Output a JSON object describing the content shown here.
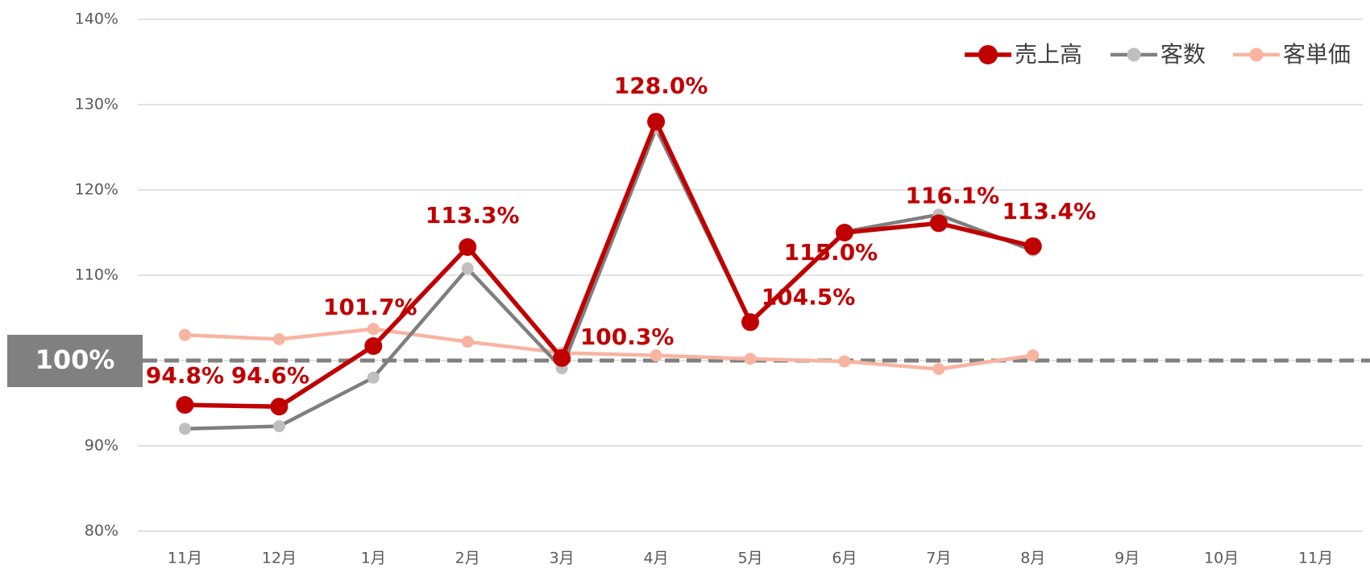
{
  "chart_data": {
    "type": "line",
    "categories": [
      "11月",
      "12月",
      "1月",
      "2月",
      "3月",
      "4月",
      "5月",
      "6月",
      "7月",
      "8月",
      "9月",
      "10月",
      "11月"
    ],
    "series": [
      {
        "name": "売上高",
        "color": "#c00000",
        "values": [
          94.8,
          94.6,
          101.7,
          113.3,
          100.3,
          128.0,
          104.5,
          115.0,
          116.1,
          113.4,
          null,
          null,
          null
        ],
        "value_labels": [
          "94.8%",
          "94.6%",
          "101.7%",
          "113.3%",
          "100.3%",
          "128.0%",
          "104.5%",
          "115.0%",
          "116.1%",
          "113.4%",
          null,
          null,
          null
        ]
      },
      {
        "name": "客数",
        "color": "#7f7f7f",
        "marker_color": "#bfbfbf",
        "values": [
          92.0,
          92.3,
          98.0,
          110.8,
          99.1,
          127.2,
          104.5,
          115.1,
          117.1,
          112.9,
          null,
          null,
          null
        ]
      },
      {
        "name": "客単価",
        "color": "#f8b4a0",
        "values": [
          103.0,
          102.5,
          103.7,
          102.2,
          100.9,
          100.6,
          100.2,
          99.9,
          99.0,
          100.6,
          null,
          null,
          null
        ]
      }
    ],
    "ylim": [
      80,
      140
    ],
    "yticks": [
      {
        "value": 80,
        "label": "80%"
      },
      {
        "value": 90,
        "label": "90%"
      },
      {
        "value": 100,
        "label": "100%"
      },
      {
        "value": 110,
        "label": "110%"
      },
      {
        "value": 120,
        "label": "120%"
      },
      {
        "value": 130,
        "label": "130%"
      },
      {
        "value": 140,
        "label": "140%"
      }
    ],
    "grid": true,
    "legend": "top-right",
    "reference_line": {
      "value": 100,
      "label": "100%",
      "color": "#808080"
    }
  }
}
